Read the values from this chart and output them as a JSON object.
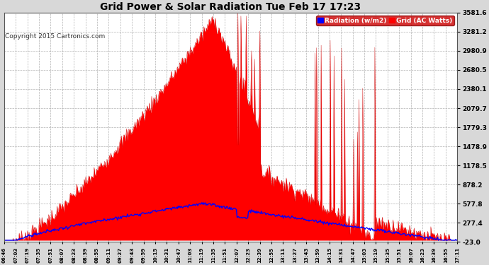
{
  "title": "Grid Power & Solar Radiation Tue Feb 17 17:23",
  "copyright": "Copyright 2015 Cartronics.com",
  "legend_radiation": "Radiation (w/m2)",
  "legend_grid": "Grid (AC Watts)",
  "y_ticks": [
    -23.0,
    277.4,
    577.8,
    878.2,
    1178.5,
    1478.9,
    1779.3,
    2079.7,
    2380.1,
    2680.5,
    2980.9,
    3281.2,
    3581.6
  ],
  "y_min": -23.0,
  "y_max": 3581.6,
  "bg_color": "#d8d8d8",
  "plot_bg_color": "#ffffff",
  "grid_color": "#aaaaaa",
  "red_fill_color": "#ff0000",
  "blue_line_color": "#0000ff",
  "title_color": "#000000",
  "x_labels": [
    "06:46",
    "07:03",
    "07:19",
    "07:35",
    "07:51",
    "08:07",
    "08:23",
    "08:39",
    "08:55",
    "09:11",
    "09:27",
    "09:43",
    "09:59",
    "10:15",
    "10:31",
    "10:47",
    "11:03",
    "11:19",
    "11:35",
    "11:51",
    "12:07",
    "12:23",
    "12:39",
    "12:55",
    "13:11",
    "13:27",
    "13:43",
    "13:59",
    "14:15",
    "14:31",
    "14:47",
    "15:03",
    "15:19",
    "15:35",
    "15:51",
    "16:07",
    "16:23",
    "16:39",
    "16:55",
    "17:11"
  ]
}
